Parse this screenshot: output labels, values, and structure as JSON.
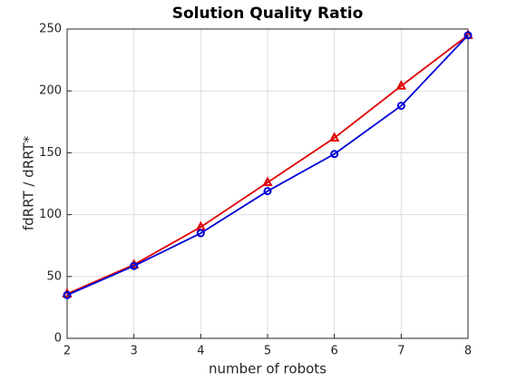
{
  "chart_data": {
    "type": "line",
    "title": "Solution Quality Ratio",
    "x_label": "number of robots",
    "y_label": "fdRRT / dRRT*",
    "x": [
      2,
      3,
      4,
      5,
      6,
      7,
      8
    ],
    "series": [
      {
        "color": "#e00000",
        "marker": "triangle",
        "values": [
          36,
          59.5,
          90,
          126,
          162,
          204,
          245
        ]
      },
      {
        "color": "#0000d8",
        "marker": "circle",
        "values": [
          35,
          58.5,
          85,
          119,
          149,
          188,
          245
        ]
      }
    ],
    "xlim": [
      2,
      8
    ],
    "xticks": [
      2,
      3,
      4,
      5,
      6,
      7,
      8
    ],
    "ylim": [
      0,
      250
    ],
    "yticks": [
      0,
      50,
      100,
      150,
      200,
      250
    ],
    "grid": true
  }
}
